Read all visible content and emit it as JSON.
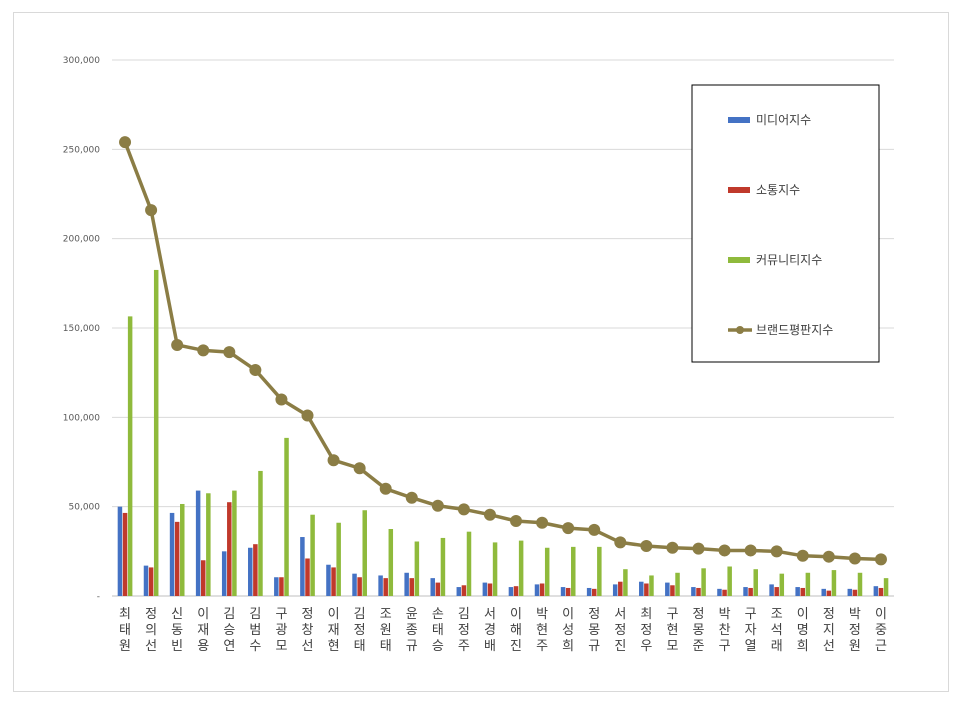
{
  "chart_data": {
    "type": "bar",
    "categories": [
      "최태원",
      "정의선",
      "신동빈",
      "이재용",
      "김승연",
      "김범수",
      "구광모",
      "정창선",
      "이재현",
      "김정태",
      "조원태",
      "윤종규",
      "손태승",
      "김정주",
      "서경배",
      "이해진",
      "박현주",
      "이성희",
      "정몽규",
      "서정진",
      "최정우",
      "구현모",
      "정몽준",
      "박찬구",
      "구자열",
      "조석래",
      "이명희",
      "정지선",
      "박정원",
      "이중근"
    ],
    "ylim": [
      0,
      300000
    ],
    "yticks": [
      0,
      50000,
      100000,
      150000,
      200000,
      250000,
      300000
    ],
    "ytick_labels": [
      "-",
      "50,000",
      "100,000",
      "150,000",
      "200,000",
      "250,000",
      "300,000"
    ],
    "grid": true,
    "legend_position": "right",
    "series": [
      {
        "name": "미디어지수",
        "type": "bar",
        "color": "#4472c4",
        "values": [
          50000,
          17000,
          46500,
          59000,
          25000,
          27000,
          10500,
          33000,
          17500,
          12500,
          11500,
          13000,
          10000,
          5000,
          7500,
          5000,
          6500,
          5000,
          4500,
          6500,
          8000,
          7500,
          5000,
          4000,
          5000,
          6500,
          5000,
          4000,
          4000,
          5500
        ]
      },
      {
        "name": "소통지수",
        "type": "bar",
        "color": "#c0392b",
        "values": [
          46500,
          16000,
          41500,
          20000,
          52500,
          29000,
          10500,
          21000,
          16000,
          10500,
          10000,
          10000,
          7500,
          6000,
          7000,
          5500,
          7000,
          4500,
          4000,
          8000,
          7000,
          6000,
          4500,
          3500,
          4500,
          5000,
          4500,
          3000,
          3500,
          4500
        ]
      },
      {
        "name": "커뮤니티지수",
        "type": "bar",
        "color": "#8fba3c",
        "values": [
          156500,
          182500,
          51500,
          57500,
          59000,
          70000,
          88500,
          45500,
          41000,
          48000,
          37500,
          30500,
          32500,
          36000,
          30000,
          31000,
          27000,
          27500,
          27500,
          15000,
          11500,
          13000,
          15500,
          16500,
          15000,
          12500,
          13000,
          14500,
          13000,
          10000
        ]
      },
      {
        "name": "브랜드평판지수",
        "type": "line",
        "color": "#8b7d45",
        "values": [
          254000,
          216000,
          140500,
          137500,
          136500,
          126500,
          110000,
          101000,
          76000,
          71500,
          60000,
          55000,
          50500,
          48500,
          45500,
          42000,
          41000,
          38000,
          37000,
          30000,
          28000,
          27000,
          26500,
          25500,
          25500,
          25000,
          22500,
          22000,
          21000,
          20500
        ]
      }
    ]
  }
}
